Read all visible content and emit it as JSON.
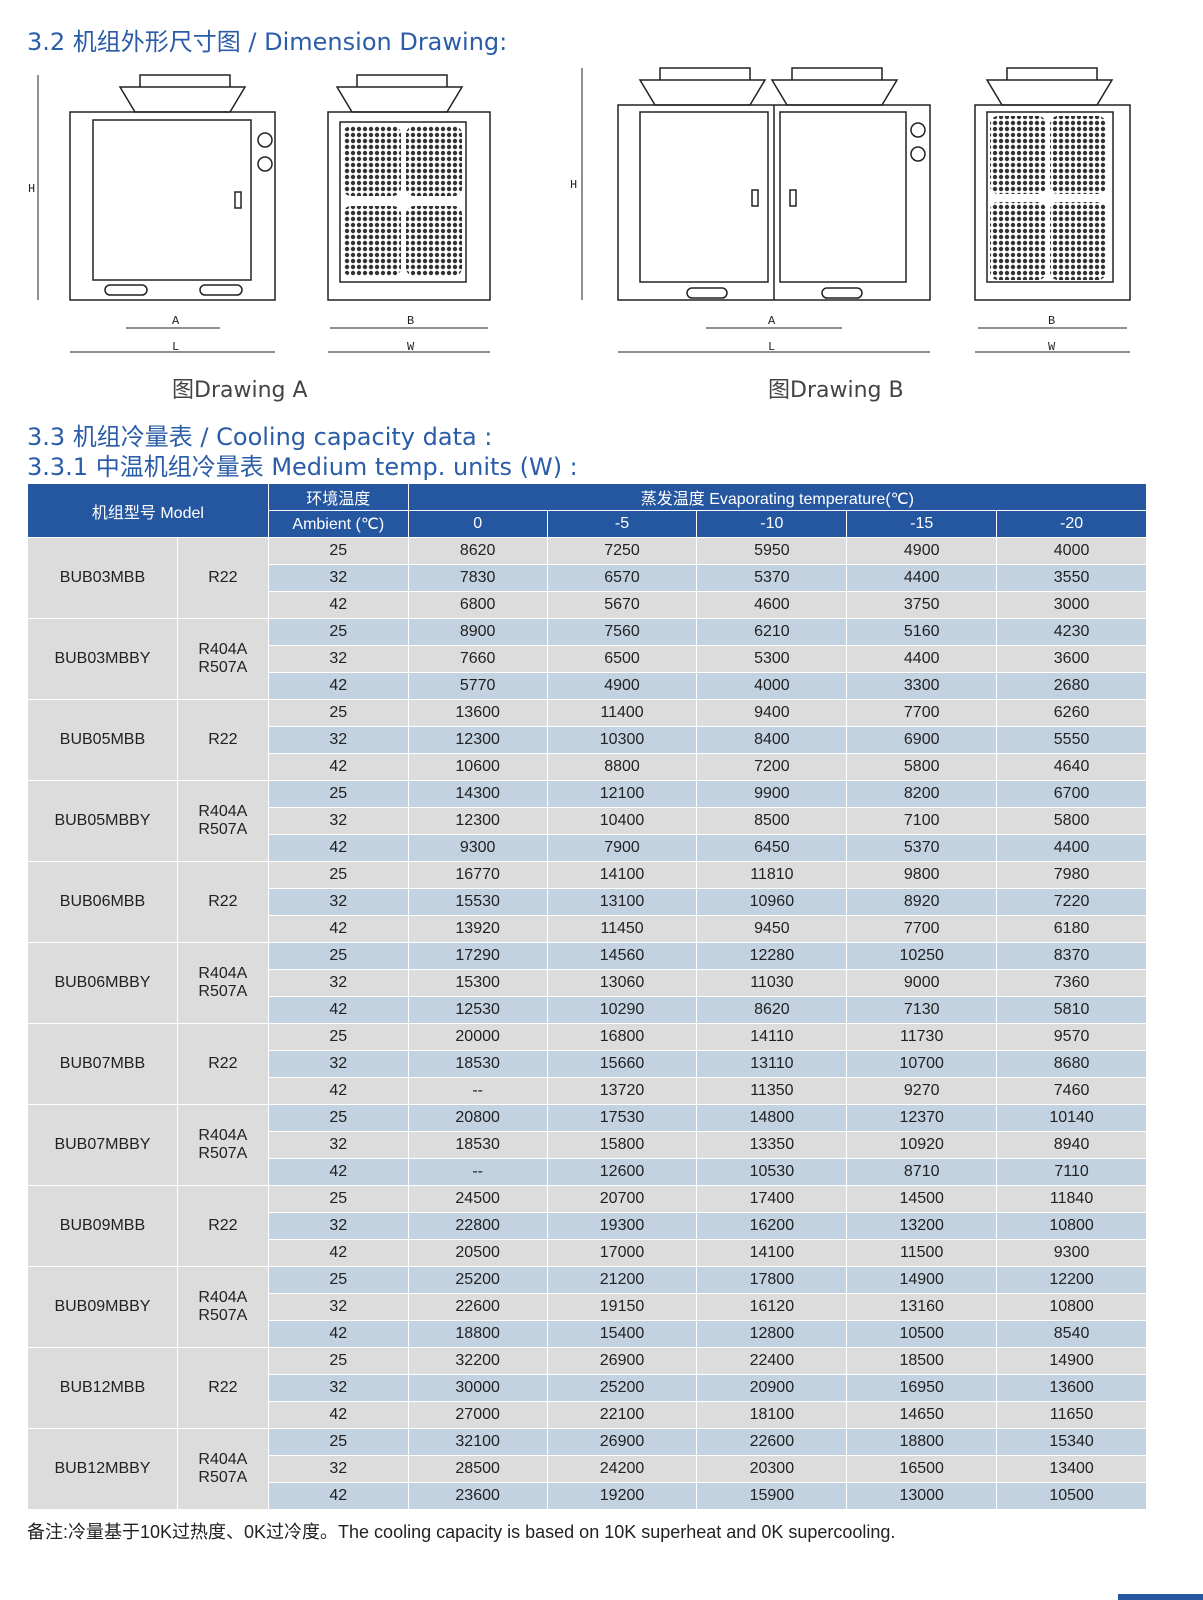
{
  "section_32": {
    "title": "3.2 机组外形尺寸图 / Dimension Drawing:"
  },
  "drawings": {
    "a_caption": "图Drawing  A",
    "b_caption": "图Drawing  B",
    "labels": {
      "h": "H",
      "a": "A",
      "l": "L",
      "b": "B",
      "w": "W"
    }
  },
  "section_33": {
    "title": "3.3 机组冷量表 / Cooling capacity data :",
    "subtitle": "3.3.1 中温机组冷量表 Medium temp. units (W) :"
  },
  "table": {
    "header": {
      "model": "机组型号 Model",
      "ambient_cn": "环境温度",
      "ambient_en": "Ambient (℃)",
      "evap": "蒸发温度 Evaporating temperature(℃)",
      "evap_cols": [
        "0",
        "-5",
        "-10",
        "-15",
        "-20"
      ]
    },
    "groups": [
      {
        "model": "BUB03MBB",
        "refrigerant": [
          "R22"
        ],
        "rows": [
          [
            "25",
            "8620",
            "7250",
            "5950",
            "4900",
            "4000"
          ],
          [
            "32",
            "7830",
            "6570",
            "5370",
            "4400",
            "3550"
          ],
          [
            "42",
            "6800",
            "5670",
            "4600",
            "3750",
            "3000"
          ]
        ]
      },
      {
        "model": "BUB03MBBY",
        "refrigerant": [
          "R404A",
          "R507A"
        ],
        "rows": [
          [
            "25",
            "8900",
            "7560",
            "6210",
            "5160",
            "4230"
          ],
          [
            "32",
            "7660",
            "6500",
            "5300",
            "4400",
            "3600"
          ],
          [
            "42",
            "5770",
            "4900",
            "4000",
            "3300",
            "2680"
          ]
        ]
      },
      {
        "model": "BUB05MBB",
        "refrigerant": [
          "R22"
        ],
        "rows": [
          [
            "25",
            "13600",
            "11400",
            "9400",
            "7700",
            "6260"
          ],
          [
            "32",
            "12300",
            "10300",
            "8400",
            "6900",
            "5550"
          ],
          [
            "42",
            "10600",
            "8800",
            "7200",
            "5800",
            "4640"
          ]
        ]
      },
      {
        "model": "BUB05MBBY",
        "refrigerant": [
          "R404A",
          "R507A"
        ],
        "rows": [
          [
            "25",
            "14300",
            "12100",
            "9900",
            "8200",
            "6700"
          ],
          [
            "32",
            "12300",
            "10400",
            "8500",
            "7100",
            "5800"
          ],
          [
            "42",
            "9300",
            "7900",
            "6450",
            "5370",
            "4400"
          ]
        ]
      },
      {
        "model": "BUB06MBB",
        "refrigerant": [
          "R22"
        ],
        "rows": [
          [
            "25",
            "16770",
            "14100",
            "11810",
            "9800",
            "7980"
          ],
          [
            "32",
            "15530",
            "13100",
            "10960",
            "8920",
            "7220"
          ],
          [
            "42",
            "13920",
            "11450",
            "9450",
            "7700",
            "6180"
          ]
        ]
      },
      {
        "model": "BUB06MBBY",
        "refrigerant": [
          "R404A",
          "R507A"
        ],
        "rows": [
          [
            "25",
            "17290",
            "14560",
            "12280",
            "10250",
            "8370"
          ],
          [
            "32",
            "15300",
            "13060",
            "11030",
            "9000",
            "7360"
          ],
          [
            "42",
            "12530",
            "10290",
            "8620",
            "7130",
            "5810"
          ]
        ]
      },
      {
        "model": "BUB07MBB",
        "refrigerant": [
          "R22"
        ],
        "rows": [
          [
            "25",
            "20000",
            "16800",
            "14110",
            "11730",
            "9570"
          ],
          [
            "32",
            "18530",
            "15660",
            "13110",
            "10700",
            "8680"
          ],
          [
            "42",
            "--",
            "13720",
            "11350",
            "9270",
            "7460"
          ]
        ]
      },
      {
        "model": "BUB07MBBY",
        "refrigerant": [
          "R404A",
          "R507A"
        ],
        "rows": [
          [
            "25",
            "20800",
            "17530",
            "14800",
            "12370",
            "10140"
          ],
          [
            "32",
            "18530",
            "15800",
            "13350",
            "10920",
            "8940"
          ],
          [
            "42",
            "--",
            "12600",
            "10530",
            "8710",
            "7110"
          ]
        ]
      },
      {
        "model": "BUB09MBB",
        "refrigerant": [
          "R22"
        ],
        "rows": [
          [
            "25",
            "24500",
            "20700",
            "17400",
            "14500",
            "11840"
          ],
          [
            "32",
            "22800",
            "19300",
            "16200",
            "13200",
            "10800"
          ],
          [
            "42",
            "20500",
            "17000",
            "14100",
            "11500",
            "9300"
          ]
        ]
      },
      {
        "model": "BUB09MBBY",
        "refrigerant": [
          "R404A",
          "R507A"
        ],
        "rows": [
          [
            "25",
            "25200",
            "21200",
            "17800",
            "14900",
            "12200"
          ],
          [
            "32",
            "22600",
            "19150",
            "16120",
            "13160",
            "10800"
          ],
          [
            "42",
            "18800",
            "15400",
            "12800",
            "10500",
            "8540"
          ]
        ]
      },
      {
        "model": "BUB12MBB",
        "refrigerant": [
          "R22"
        ],
        "rows": [
          [
            "25",
            "32200",
            "26900",
            "22400",
            "18500",
            "14900"
          ],
          [
            "32",
            "30000",
            "25200",
            "20900",
            "16950",
            "13600"
          ],
          [
            "42",
            "27000",
            "22100",
            "18100",
            "14650",
            "11650"
          ]
        ]
      },
      {
        "model": "BUB12MBBY",
        "refrigerant": [
          "R404A",
          "R507A"
        ],
        "rows": [
          [
            "25",
            "32100",
            "26900",
            "22600",
            "18800",
            "15340"
          ],
          [
            "32",
            "28500",
            "24200",
            "20300",
            "16500",
            "13400"
          ],
          [
            "42",
            "23600",
            "19200",
            "15900",
            "13000",
            "10500"
          ]
        ]
      }
    ]
  },
  "note": "备注:冷量基于10K过热度、0K过冷度。The cooling capacity is based on 10K superheat and 0K supercooling.",
  "colors": {
    "heading": "#2a5ca8",
    "header_bg": "#2556a0",
    "row_gray": "#dcdcdc",
    "row_blue": "#c3d2e0"
  }
}
